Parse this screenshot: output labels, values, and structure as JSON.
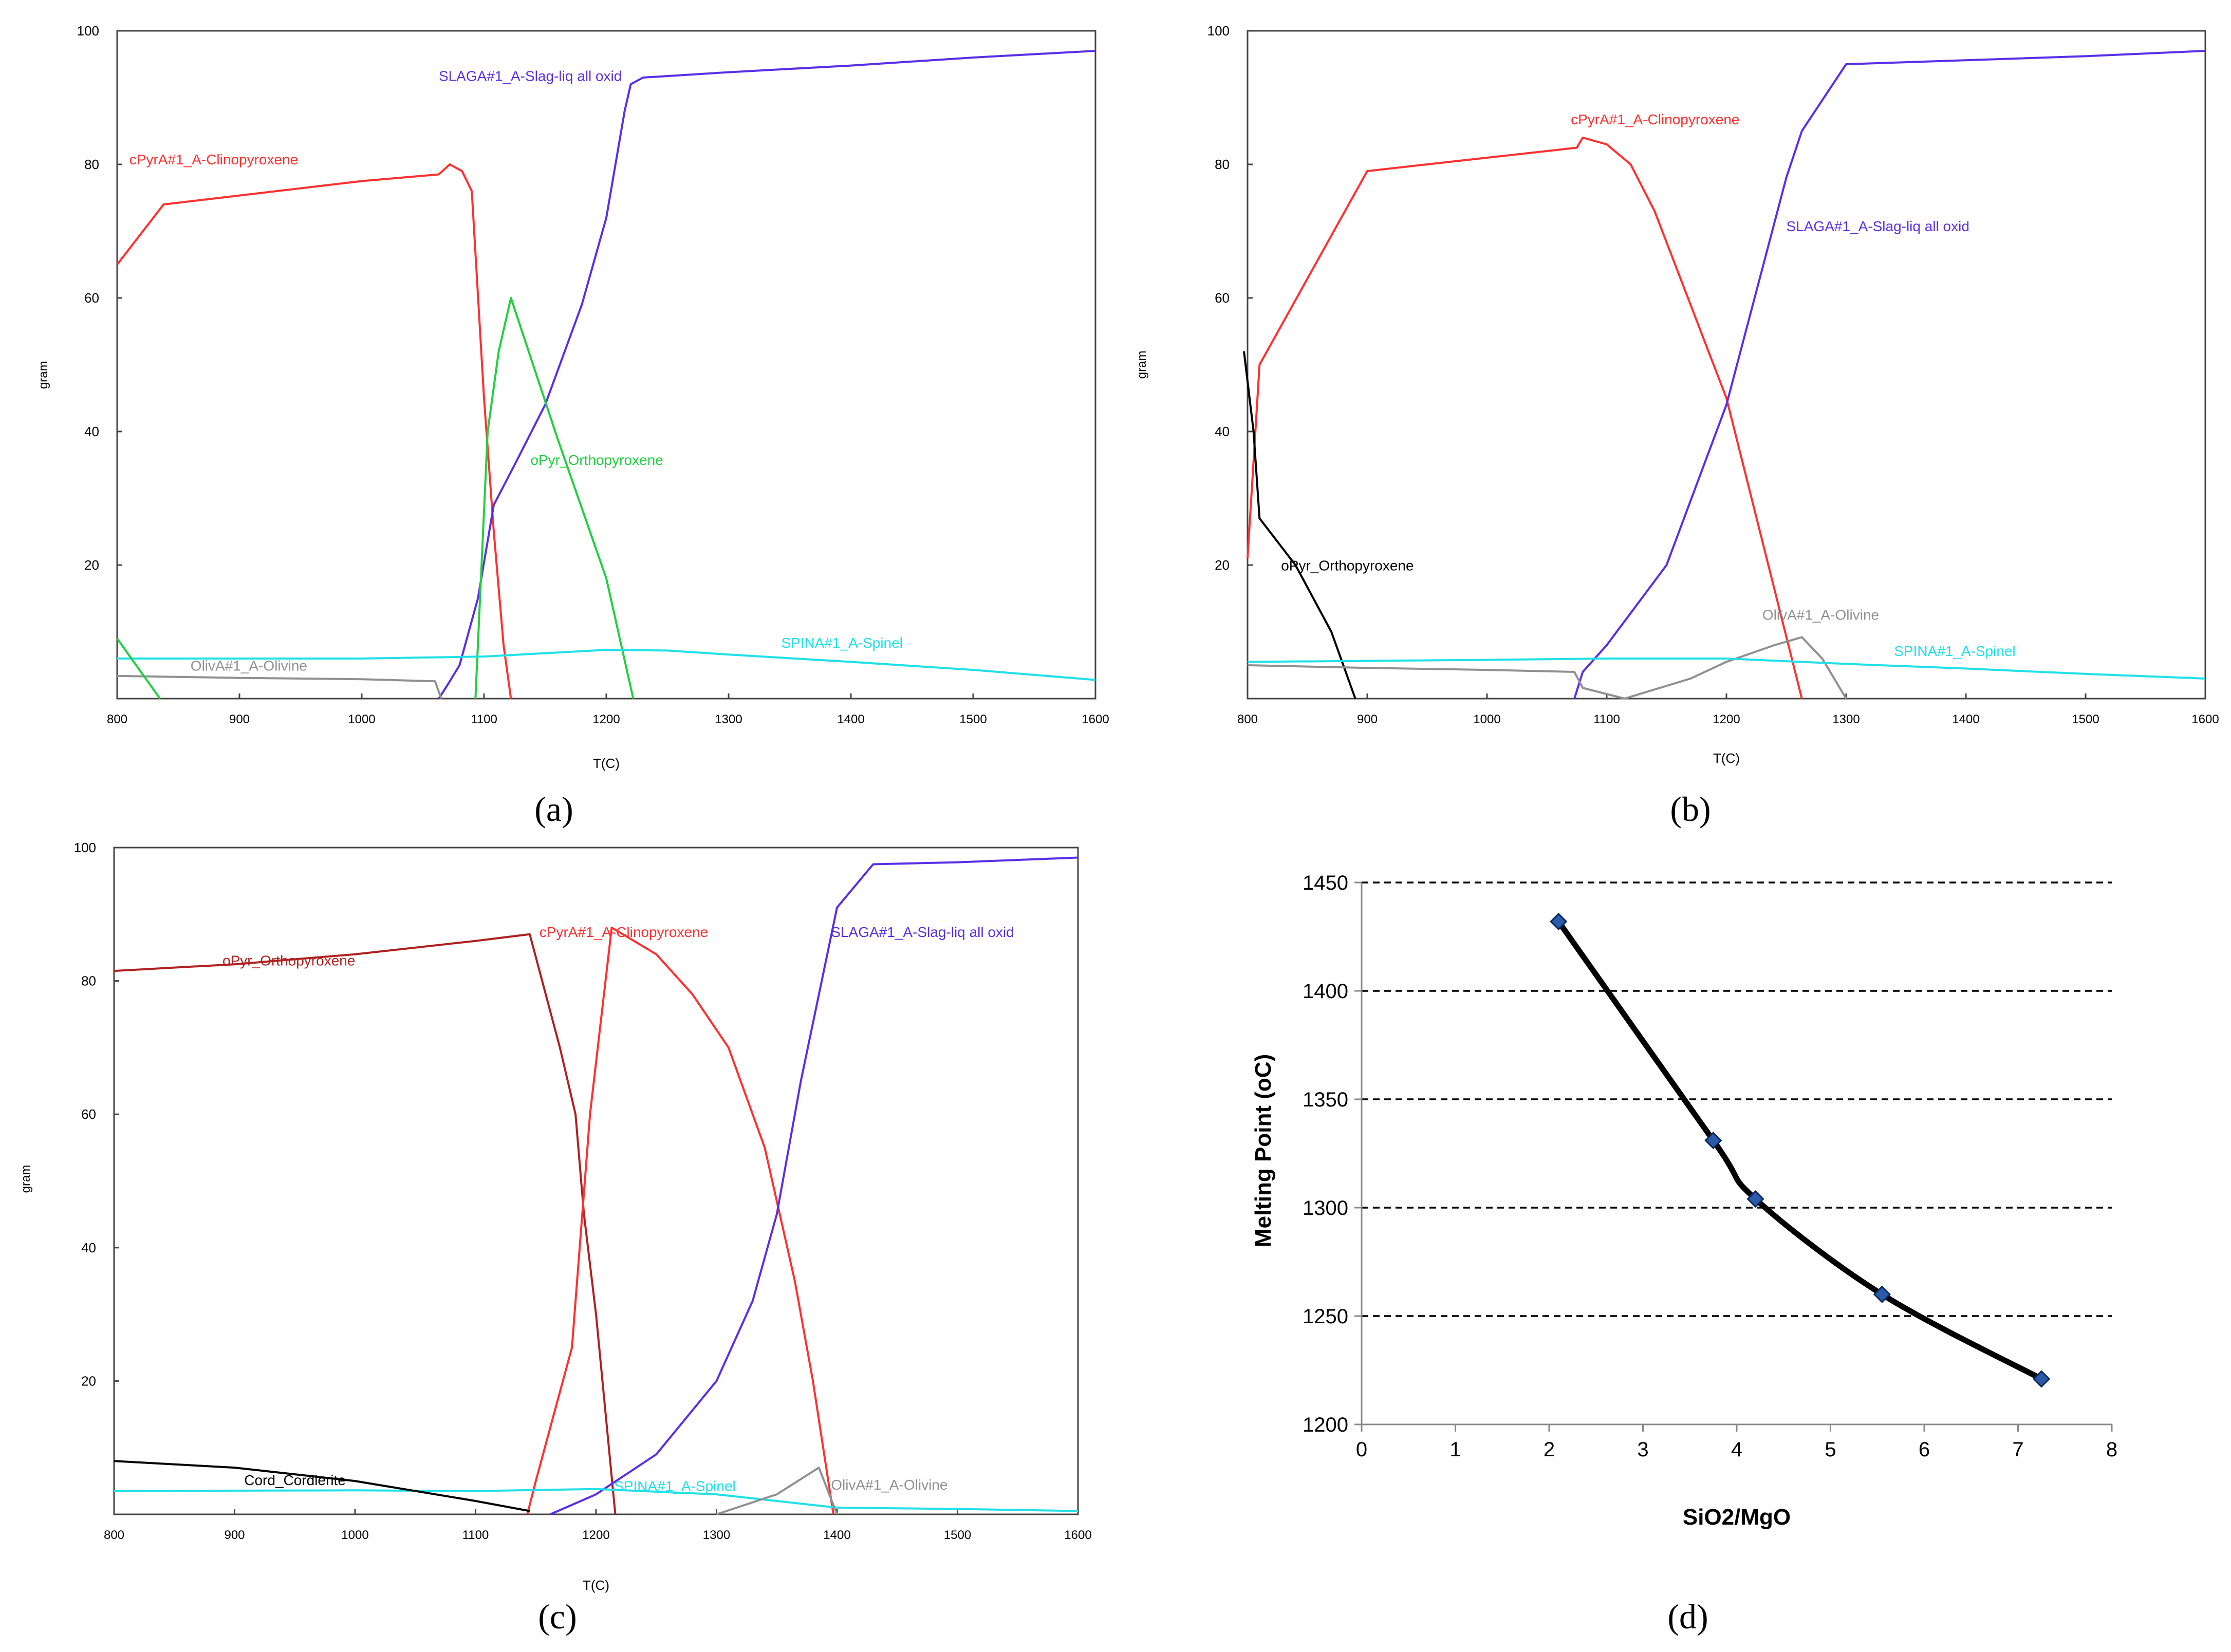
{
  "chart_data": [
    {
      "type": "line",
      "panel": "a",
      "caption": "(a)",
      "xlabel": "T(C)",
      "ylabel": "gram",
      "xlim": [
        800,
        1600
      ],
      "ylim": [
        0,
        100
      ],
      "xticks": [
        800,
        900,
        1000,
        1100,
        1200,
        1300,
        1400,
        1500,
        1600
      ],
      "yticks": [
        20,
        40,
        60,
        80,
        100
      ],
      "series": [
        {
          "name": "cPyrA#1_A-Clinopyroxene",
          "color": "#ff3030",
          "label_at": [
            810,
            80
          ],
          "points": [
            [
              800,
              65
            ],
            [
              838,
              74
            ],
            [
              1000,
              77.5
            ],
            [
              1063,
              78.5
            ],
            [
              1072,
              80
            ],
            [
              1082,
              79
            ],
            [
              1090,
              76
            ],
            [
              1100,
              45
            ],
            [
              1108,
              25
            ],
            [
              1116,
              8
            ],
            [
              1122,
              0
            ]
          ]
        },
        {
          "name": "SLAGA#1_A-Slag-liq all oxid",
          "color": "#5a2ee8",
          "label_at": [
            1063,
            92.5
          ],
          "points": [
            [
              1063,
              0
            ],
            [
              1070,
              2
            ],
            [
              1080,
              5
            ],
            [
              1095,
              15
            ],
            [
              1108,
              29
            ],
            [
              1125,
              35
            ],
            [
              1150,
              44
            ],
            [
              1180,
              59
            ],
            [
              1200,
              72
            ],
            [
              1215,
              88
            ],
            [
              1220,
              92
            ],
            [
              1230,
              93
            ],
            [
              1300,
              93.8
            ],
            [
              1400,
              94.8
            ],
            [
              1500,
              96
            ],
            [
              1600,
              97
            ]
          ]
        },
        {
          "name": "oPyr_Orthopyroxene",
          "color": "#20d040",
          "label_at": [
            1138,
            35
          ],
          "points": [
            [
              1093,
              0
            ],
            [
              1103,
              40
            ],
            [
              1112,
              52
            ],
            [
              1122,
              60
            ],
            [
              1160,
              39
            ],
            [
              1200,
              18
            ],
            [
              1222,
              0
            ]
          ]
        },
        {
          "name": "SPINA#1_A-Spinel",
          "color": "#20e0e8",
          "label_at": [
            1343,
            7.6
          ],
          "points": [
            [
              800,
              6
            ],
            [
              1000,
              6
            ],
            [
              1100,
              6.3
            ],
            [
              1200,
              7.3
            ],
            [
              1250,
              7.2
            ],
            [
              1300,
              6.6
            ],
            [
              1400,
              5.5
            ],
            [
              1500,
              4.3
            ],
            [
              1600,
              2.8
            ]
          ]
        },
        {
          "name": "OlivA#1_A-Olivine",
          "color": "#909090",
          "label_at": [
            860,
            4.2
          ],
          "points": [
            [
              800,
              3.4
            ],
            [
              900,
              3.1
            ],
            [
              1000,
              2.9
            ],
            [
              1060,
              2.6
            ],
            [
              1065,
              0
            ]
          ]
        },
        {
          "name": "",
          "color": "#20d040",
          "points": [
            [
              800,
              9
            ],
            [
              835,
              0
            ]
          ]
        }
      ]
    },
    {
      "type": "line",
      "panel": "b",
      "caption": "(b)",
      "xlabel": "T(C)",
      "ylabel": "gram",
      "xlim": [
        800,
        1600
      ],
      "ylim": [
        0,
        100
      ],
      "xticks": [
        800,
        900,
        1000,
        1100,
        1200,
        1300,
        1400,
        1500,
        1600
      ],
      "yticks": [
        20,
        40,
        60,
        80,
        100
      ],
      "series": [
        {
          "name": "cPyrA#1_A-Clinopyroxene",
          "color": "#ff3030",
          "label_at": [
            1070,
            86
          ],
          "points": [
            [
              800,
              21
            ],
            [
              810,
              50
            ],
            [
              900,
              79
            ],
            [
              1000,
              81
            ],
            [
              1075,
              82.5
            ],
            [
              1080,
              84
            ],
            [
              1100,
              83
            ],
            [
              1120,
              80
            ],
            [
              1140,
              73
            ],
            [
              1200,
              45
            ],
            [
              1263,
              0
            ]
          ]
        },
        {
          "name": "SLAGA#1_A-Slag-liq all oxid",
          "color": "#5a2ee8",
          "label_at": [
            1250,
            70
          ],
          "points": [
            [
              1073,
              0
            ],
            [
              1080,
              4
            ],
            [
              1100,
              8
            ],
            [
              1150,
              20
            ],
            [
              1200,
              44
            ],
            [
              1250,
              78
            ],
            [
              1263,
              85
            ],
            [
              1300,
              95
            ],
            [
              1350,
              95.3
            ],
            [
              1400,
              95.6
            ],
            [
              1500,
              96.2
            ],
            [
              1600,
              97
            ]
          ]
        },
        {
          "name": "oPyr_Orthopyroxene",
          "color": "#000000",
          "label_at": [
            828,
            19.2
          ],
          "points": [
            [
              797,
              52
            ],
            [
              805,
              40
            ],
            [
              810,
              27
            ],
            [
              840,
              20
            ],
            [
              870,
              10
            ],
            [
              890,
              0
            ]
          ]
        },
        {
          "name": "OlivA#1_A-Olivine",
          "color": "#909090",
          "label_at": [
            1230,
            11.8
          ],
          "points": [
            [
              800,
              5
            ],
            [
              900,
              4.6
            ],
            [
              1000,
              4.3
            ],
            [
              1073,
              4
            ],
            [
              1080,
              1.6
            ],
            [
              1115,
              0
            ],
            [
              1170,
              3
            ],
            [
              1200,
              5.5
            ],
            [
              1240,
              8
            ],
            [
              1263,
              9.2
            ],
            [
              1280,
              6
            ],
            [
              1300,
              0
            ]
          ]
        },
        {
          "name": "SPINA#1_A-Spinel",
          "color": "#20e0e8",
          "label_at": [
            1340,
            6.4
          ],
          "points": [
            [
              800,
              5.5
            ],
            [
              1000,
              5.8
            ],
            [
              1100,
              6
            ],
            [
              1200,
              6
            ],
            [
              1300,
              5.2
            ],
            [
              1400,
              4.5
            ],
            [
              1500,
              3.7
            ],
            [
              1600,
              3
            ]
          ]
        }
      ]
    },
    {
      "type": "line",
      "panel": "c",
      "caption": "(c)",
      "xlabel": "T(C)",
      "ylabel": "gram",
      "xlim": [
        800,
        1600
      ],
      "ylim": [
        0,
        100
      ],
      "xticks": [
        800,
        900,
        1000,
        1100,
        1200,
        1300,
        1400,
        1500,
        1600
      ],
      "yticks": [
        20,
        40,
        60,
        80,
        100
      ],
      "series": [
        {
          "name": "oPyr_Orthopyroxene",
          "color": "#b02020",
          "label_at": [
            890,
            82.3
          ],
          "points": [
            [
              800,
              81.5
            ],
            [
              900,
              82.5
            ],
            [
              1000,
              84
            ],
            [
              1100,
              86
            ],
            [
              1145,
              87
            ],
            [
              1170,
              70
            ],
            [
              1183,
              60
            ],
            [
              1190,
              45
            ],
            [
              1200,
              30
            ],
            [
              1216,
              0
            ]
          ]
        },
        {
          "name": "cPyrA#1_A-Clinopyroxene",
          "color": "#ff3030",
          "label_at": [
            1153,
            86.6
          ],
          "points": [
            [
              1143,
              0
            ],
            [
              1150,
              5
            ],
            [
              1165,
              15
            ],
            [
              1180,
              25
            ],
            [
              1195,
              60
            ],
            [
              1213,
              88
            ],
            [
              1250,
              84
            ],
            [
              1280,
              78
            ],
            [
              1310,
              70
            ],
            [
              1340,
              55
            ],
            [
              1365,
              35
            ],
            [
              1380,
              20
            ],
            [
              1397,
              0
            ]
          ]
        },
        {
          "name": "SLAGA#1_A-Slag-liq all oxid",
          "color": "#5a2ee8",
          "label_at": [
            1395,
            86.6
          ],
          "points": [
            [
              1162,
              0
            ],
            [
              1200,
              3
            ],
            [
              1250,
              9
            ],
            [
              1300,
              20
            ],
            [
              1330,
              32
            ],
            [
              1350,
              45
            ],
            [
              1370,
              65
            ],
            [
              1400,
              91
            ],
            [
              1430,
              97.5
            ],
            [
              1500,
              97.8
            ],
            [
              1600,
              98.5
            ]
          ]
        },
        {
          "name": "SPINA#1_A-Spinel",
          "color": "#20e0e8",
          "label_at": [
            1215,
            3.5
          ],
          "points": [
            [
              800,
              3.5
            ],
            [
              1000,
              3.6
            ],
            [
              1100,
              3.5
            ],
            [
              1200,
              3.8
            ],
            [
              1300,
              3
            ],
            [
              1400,
              1
            ],
            [
              1500,
              0.8
            ],
            [
              1600,
              0.5
            ]
          ]
        },
        {
          "name": "Cord_Cordierite",
          "color": "#000000",
          "label_at": [
            908,
            4.4
          ],
          "points": [
            [
              800,
              8
            ],
            [
              900,
              7
            ],
            [
              1000,
              5
            ],
            [
              1100,
              2
            ],
            [
              1145,
              0.5
            ]
          ]
        },
        {
          "name": "OlivA#1_A-Olivine",
          "color": "#909090",
          "label_at": [
            1395,
            3.7
          ],
          "points": [
            [
              1300,
              0
            ],
            [
              1350,
              3
            ],
            [
              1385,
              7
            ],
            [
              1400,
              0
            ]
          ]
        }
      ]
    },
    {
      "type": "scatter",
      "panel": "d",
      "caption": "(d)",
      "xlabel": "SiO2/MgO",
      "ylabel": "Melting Point (oC)",
      "xlim": [
        0,
        8
      ],
      "ylim": [
        1200,
        1450
      ],
      "xticks": [
        0,
        1,
        2,
        3,
        4,
        5,
        6,
        7,
        8
      ],
      "yticks": [
        1200,
        1250,
        1300,
        1350,
        1400,
        1450
      ],
      "gridlines": "dashed horizontal",
      "series": [
        {
          "name": "Melting Point",
          "color": "#000000",
          "x": [
            2.1,
            3.75,
            4.2,
            5.55,
            7.25
          ],
          "y": [
            1432,
            1331,
            1304,
            1260,
            1221
          ]
        }
      ]
    }
  ]
}
